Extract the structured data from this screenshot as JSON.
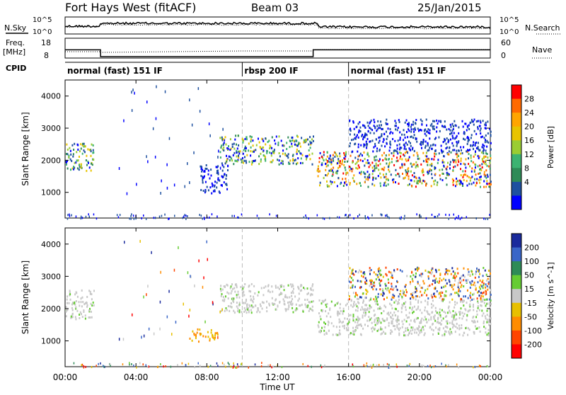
{
  "header": {
    "title": "Fort Hays West (fitACF)",
    "beam": "Beam 03",
    "date": "25/Jan/2015"
  },
  "top_panels": {
    "nsky_label": "N.Sky",
    "nsky_ticks": [
      "10^5",
      "10^0"
    ],
    "nsearch_label": "N.Search",
    "nsearch_ticks": [
      "10^5",
      "10^0"
    ],
    "freq_label": "Freq.",
    "freq_unit": "[MHz]",
    "freq_ticks": [
      "18",
      "8"
    ],
    "nave_label": "Nave",
    "nave_ticks": [
      "60",
      "0"
    ],
    "cpid_label": "CPID",
    "cpid_segments": [
      {
        "label": "normal (fast) 151 IF",
        "start_hr": 0,
        "end_hr": 10
      },
      {
        "label": "rbsp 200 IF",
        "start_hr": 10,
        "end_hr": 16
      },
      {
        "label": "normal (fast) 151 IF",
        "start_hr": 16,
        "end_hr": 24
      }
    ]
  },
  "x_axis": {
    "label": "Time UT",
    "ticks": [
      "00:00",
      "04:00",
      "08:00",
      "12:00",
      "16:00",
      "20:00",
      "00:00"
    ]
  },
  "power_colorbar": {
    "label": "Power [dB]",
    "ticks": [
      "28",
      "24",
      "20",
      "16",
      "12",
      "8",
      "4"
    ],
    "colors": [
      "#ff0000",
      "#ff6a00",
      "#ffa500",
      "#e8c400",
      "#9acd32",
      "#3cb371",
      "#2e8b57",
      "#1e50a0",
      "#0000ff"
    ]
  },
  "velocity_colorbar": {
    "label": "Velocity [m s^-1]",
    "ticks": [
      "200",
      "100",
      "50",
      "15",
      "-15",
      "-50",
      "-100",
      "-200"
    ],
    "colors": [
      "#1a2a9c",
      "#3a66c8",
      "#2e8b57",
      "#66cc33",
      "#c8c8c8",
      "#e8c000",
      "#ff8c00",
      "#ff4500",
      "#ff0000"
    ]
  },
  "chart_data": [
    {
      "type": "heatmap",
      "title": "",
      "xlabel": "Time UT",
      "ylabel": "Slant Range [km]",
      "y_ticks": [
        1000,
        2000,
        3000,
        4000
      ],
      "ylim": [
        200,
        4500
      ],
      "xlim_hours": [
        0,
        24
      ],
      "colorbar": "Power [dB]",
      "regions": [
        {
          "t0": 0.0,
          "t1": 1.6,
          "r0": 1700,
          "r1": 2600,
          "level": "mid"
        },
        {
          "t0": 7.6,
          "t1": 9.2,
          "r0": 1000,
          "r1": 1900,
          "level": "low"
        },
        {
          "t0": 8.7,
          "t1": 14.0,
          "r0": 1900,
          "r1": 2800,
          "level": "mid"
        },
        {
          "t0": 14.2,
          "t1": 24.0,
          "r0": 1200,
          "r1": 2300,
          "level": "high"
        },
        {
          "t0": 16.0,
          "t1": 24.0,
          "r0": 2300,
          "r1": 3300,
          "level": "low"
        }
      ]
    },
    {
      "type": "heatmap",
      "title": "",
      "xlabel": "Time UT",
      "ylabel": "Slant Range [km]",
      "y_ticks": [
        1000,
        2000,
        3000,
        4000
      ],
      "ylim": [
        200,
        4500
      ],
      "xlim_hours": [
        0,
        24
      ],
      "colorbar": "Velocity [m s^-1]",
      "regions": [
        {
          "t0": 0.0,
          "t1": 1.6,
          "r0": 1700,
          "r1": 2600,
          "level": "ground"
        },
        {
          "t0": 7.0,
          "t1": 8.6,
          "r0": 1000,
          "r1": 1400,
          "level": "neg"
        },
        {
          "t0": 8.7,
          "t1": 14.0,
          "r0": 1900,
          "r1": 2800,
          "level": "ground"
        },
        {
          "t0": 14.2,
          "t1": 24.0,
          "r0": 1200,
          "r1": 2300,
          "level": "ground"
        },
        {
          "t0": 16.0,
          "t1": 24.0,
          "r0": 2300,
          "r1": 3300,
          "level": "mixed"
        }
      ]
    }
  ]
}
